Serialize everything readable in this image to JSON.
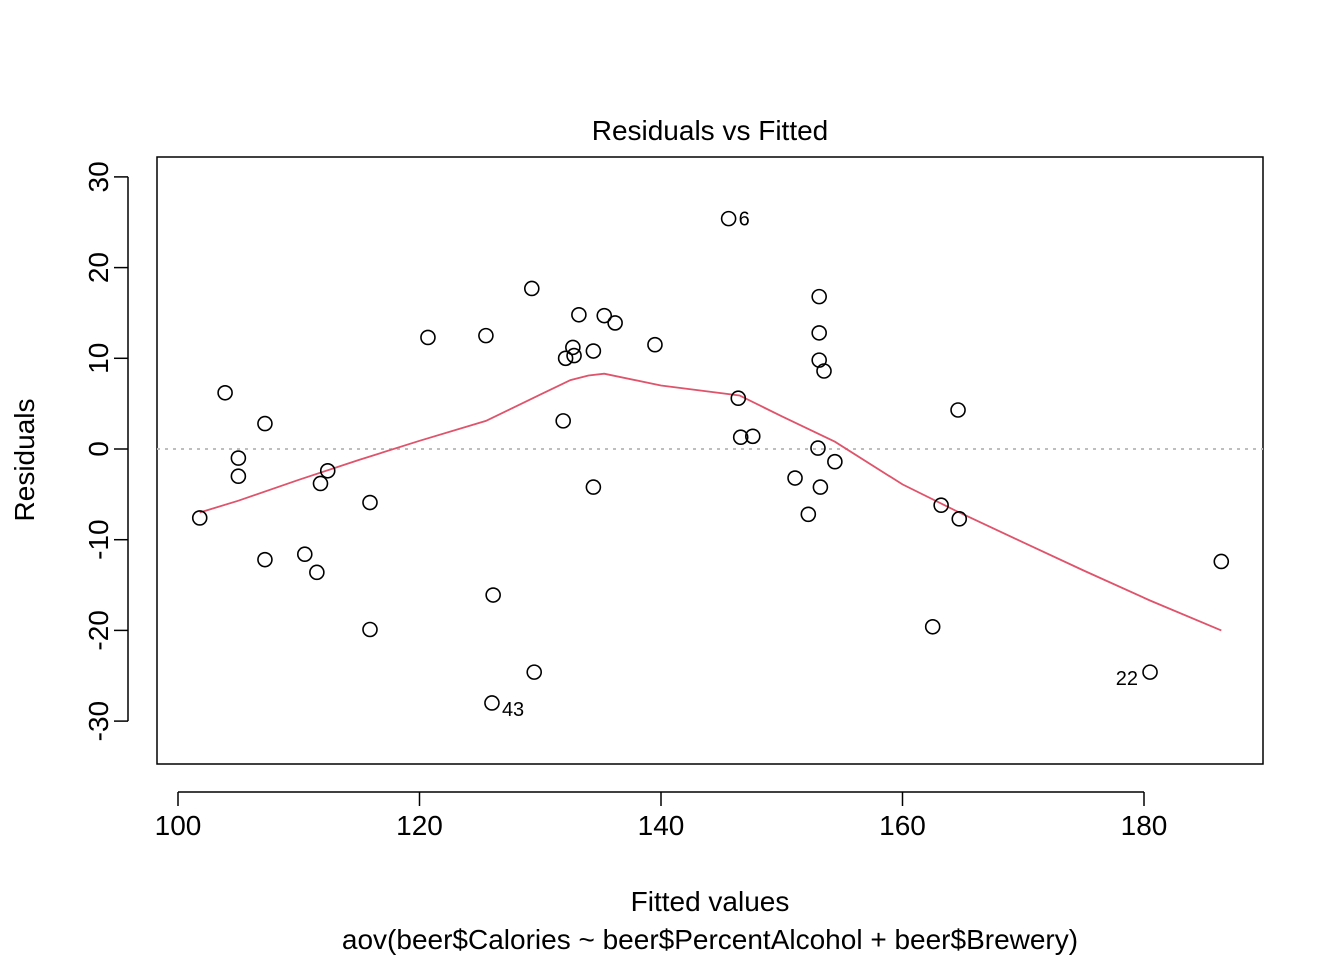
{
  "chart_data": {
    "type": "scatter",
    "title": "Residuals vs Fitted",
    "xlabel": "Fitted values",
    "xlabel_sub": "aov(beer$Calories ~ beer$PercentAlcohol + beer$Brewery)",
    "ylabel": "Residuals",
    "xlim": [
      98,
      190
    ],
    "ylim": [
      -35,
      32
    ],
    "xticks": [
      100,
      120,
      140,
      160,
      180
    ],
    "yticks": [
      -30,
      -20,
      -10,
      0,
      10,
      20,
      30
    ],
    "xtick_labels": [
      "100",
      "120",
      "140",
      "160",
      "180"
    ],
    "ytick_labels": [
      "-30",
      "-20",
      "-10",
      "0",
      "10",
      "20",
      "30"
    ],
    "reference_line": {
      "y": 0,
      "style": "dotted",
      "color": "#bebebe"
    },
    "points": [
      {
        "x": 101.8,
        "y": -7.6
      },
      {
        "x": 103.9,
        "y": 6.2
      },
      {
        "x": 105.0,
        "y": -1.0
      },
      {
        "x": 105.0,
        "y": -3.0
      },
      {
        "x": 107.2,
        "y": 2.8
      },
      {
        "x": 107.2,
        "y": -12.2
      },
      {
        "x": 110.5,
        "y": -11.6
      },
      {
        "x": 111.5,
        "y": -13.6
      },
      {
        "x": 111.8,
        "y": -3.8
      },
      {
        "x": 112.4,
        "y": -2.4
      },
      {
        "x": 115.9,
        "y": -5.9
      },
      {
        "x": 115.9,
        "y": -19.9
      },
      {
        "x": 120.7,
        "y": 12.3
      },
      {
        "x": 125.5,
        "y": 12.5
      },
      {
        "x": 126.1,
        "y": -16.1
      },
      {
        "x": 126.0,
        "y": -28.0,
        "label": "43"
      },
      {
        "x": 129.3,
        "y": 17.7
      },
      {
        "x": 129.5,
        "y": -24.6
      },
      {
        "x": 131.9,
        "y": 3.1
      },
      {
        "x": 132.1,
        "y": 10.0
      },
      {
        "x": 132.7,
        "y": 11.2
      },
      {
        "x": 132.8,
        "y": 10.3
      },
      {
        "x": 133.2,
        "y": 14.8
      },
      {
        "x": 134.4,
        "y": 10.8
      },
      {
        "x": 134.4,
        "y": -4.2
      },
      {
        "x": 135.3,
        "y": 14.7
      },
      {
        "x": 136.2,
        "y": 13.9
      },
      {
        "x": 139.5,
        "y": 11.5
      },
      {
        "x": 145.6,
        "y": 25.4,
        "label": "6"
      },
      {
        "x": 146.4,
        "y": 5.6
      },
      {
        "x": 146.6,
        "y": 1.3
      },
      {
        "x": 147.6,
        "y": 1.4
      },
      {
        "x": 151.1,
        "y": -3.2
      },
      {
        "x": 152.2,
        "y": -7.2
      },
      {
        "x": 153.0,
        "y": 0.1
      },
      {
        "x": 153.1,
        "y": 16.8
      },
      {
        "x": 153.1,
        "y": 12.8
      },
      {
        "x": 153.1,
        "y": 9.8
      },
      {
        "x": 153.2,
        "y": -4.2
      },
      {
        "x": 153.5,
        "y": 8.6
      },
      {
        "x": 154.4,
        "y": -1.4
      },
      {
        "x": 162.5,
        "y": -19.6
      },
      {
        "x": 163.2,
        "y": -6.2
      },
      {
        "x": 164.6,
        "y": 4.3
      },
      {
        "x": 164.7,
        "y": -7.7
      },
      {
        "x": 180.5,
        "y": -24.6,
        "label": "22"
      },
      {
        "x": 186.4,
        "y": -12.4
      }
    ],
    "smoother": {
      "color": "#df536b",
      "x": [
        101.8,
        105.0,
        110.0,
        115.0,
        120.0,
        125.5,
        130.0,
        132.5,
        134.0,
        135.3,
        140.0,
        146.5,
        150.0,
        154.4,
        160.0,
        164.7,
        170.0,
        175.0,
        180.5,
        186.4
      ],
      "y": [
        -7.0,
        -5.7,
        -3.4,
        -1.2,
        0.9,
        3.1,
        6.0,
        7.6,
        8.1,
        8.3,
        7.0,
        5.9,
        3.6,
        0.8,
        -3.9,
        -7.0,
        -10.3,
        -13.4,
        -16.7,
        -20.0
      ]
    }
  }
}
